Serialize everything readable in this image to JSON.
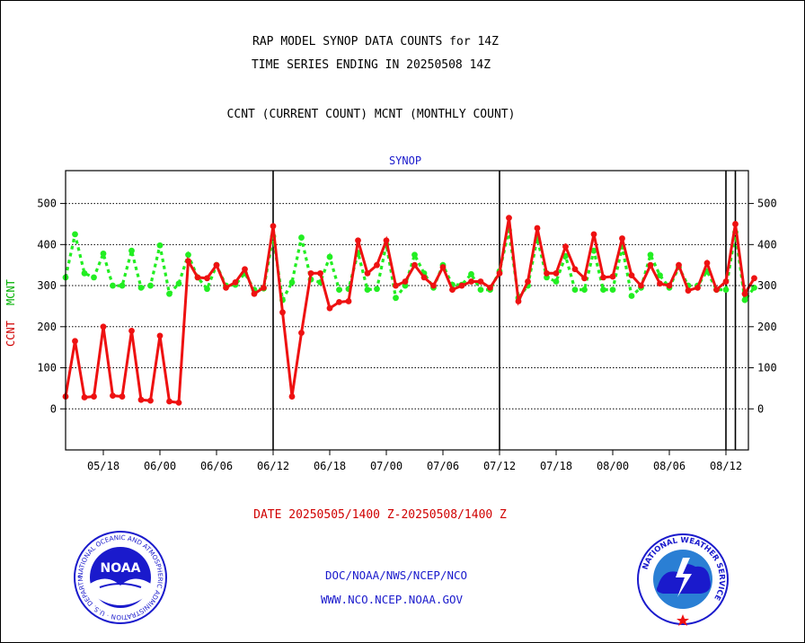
{
  "header": {
    "title_line1": "RAP MODEL SYNOP DATA COUNTS for 14Z",
    "title_line2": "TIME SERIES ENDING IN 20250508 14Z",
    "subtitle": "CCNT (CURRENT COUNT) MCNT (MONTHLY COUNT)"
  },
  "footer": {
    "date_range": "DATE 20250505/1400 Z-20250508/1400 Z",
    "link1": "DOC/NOAA/NWS/NCEP/NCO",
    "link2": "WWW.NCO.NCEP.NOAA.GOV"
  },
  "logos": {
    "noaa_text": "NOAA",
    "noaa_ring_text": "NATIONAL OCEANIC AND ATMOSPHERIC ADMINISTRATION · U.S. DEPARTMENT OF COMMERCE",
    "nws_ring_text": "NATIONAL WEATHER SERVICE"
  },
  "chart_data": {
    "type": "line",
    "panel_label": "SYNOP",
    "ylabel_ccnt": "CCNT",
    "ylabel_mcnt": "MCNT",
    "ylim": [
      -100,
      580
    ],
    "y_ticks": [
      0,
      100,
      200,
      300,
      400,
      500
    ],
    "x_ticks": [
      {
        "label": "05/18",
        "i": 4
      },
      {
        "label": "06/00",
        "i": 10
      },
      {
        "label": "06/06",
        "i": 16
      },
      {
        "label": "06/12",
        "i": 22
      },
      {
        "label": "06/18",
        "i": 28
      },
      {
        "label": "07/00",
        "i": 34
      },
      {
        "label": "07/06",
        "i": 40
      },
      {
        "label": "07/12",
        "i": 46
      },
      {
        "label": "07/18",
        "i": 52
      },
      {
        "label": "08/00",
        "i": 58
      },
      {
        "label": "08/06",
        "i": 64
      },
      {
        "label": "08/12",
        "i": 70
      }
    ],
    "day_boundaries": [
      22,
      46,
      70
    ],
    "grid": true,
    "colors": {
      "ccnt": "#ee1111",
      "mcnt": "#22ee22",
      "panel": "#1a1acc"
    },
    "series": [
      {
        "key": "ccnt",
        "name": "CCNT",
        "values": [
          30,
          165,
          28,
          30,
          200,
          32,
          30,
          190,
          22,
          20,
          178,
          18,
          15,
          360,
          320,
          318,
          350,
          295,
          308,
          340,
          280,
          295,
          445,
          235,
          30,
          185,
          330,
          330,
          245,
          260,
          262,
          410,
          330,
          350,
          410,
          300,
          310,
          350,
          320,
          300,
          345,
          290,
          300,
          310,
          310,
          295,
          330,
          465,
          262,
          310,
          440,
          330,
          330,
          395,
          340,
          318,
          425,
          320,
          322,
          415,
          325,
          300,
          350,
          305,
          300,
          350,
          288,
          295,
          355,
          290,
          310,
          450,
          280,
          318
        ]
      },
      {
        "key": "mcnt",
        "name": "MCNT",
        "values": [
          320,
          425,
          330,
          320,
          378,
          300,
          300,
          385,
          295,
          300,
          398,
          280,
          305,
          375,
          320,
          292,
          350,
          300,
          302,
          330,
          290,
          293,
          420,
          265,
          308,
          417,
          315,
          308,
          370,
          290,
          292,
          380,
          290,
          292,
          400,
          270,
          300,
          375,
          330,
          295,
          350,
          302,
          302,
          328,
          290,
          290,
          335,
          435,
          270,
          300,
          415,
          320,
          310,
          372,
          290,
          290,
          385,
          290,
          290,
          395,
          275,
          295,
          375,
          325,
          295,
          345,
          300,
          300,
          335,
          290,
          290,
          430,
          265,
          295
        ]
      }
    ]
  }
}
